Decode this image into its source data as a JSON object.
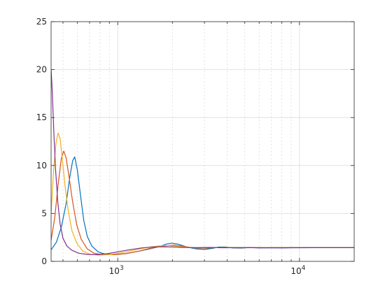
{
  "chart_data": {
    "type": "line",
    "title": "",
    "xlabel": "",
    "ylabel": "",
    "xscale": "log",
    "xlim": [
      430,
      20000
    ],
    "ylim": [
      0,
      25
    ],
    "grid": "on",
    "minor_grid_x": "on",
    "y_ticks": [
      0,
      5,
      10,
      15,
      20,
      25
    ],
    "x_major_ticks": [
      {
        "value": 1000,
        "base": "10",
        "exp": "3"
      },
      {
        "value": 10000,
        "base": "10",
        "exp": "4"
      }
    ],
    "x_minor_ticks": [
      500,
      600,
      700,
      800,
      900,
      2000,
      3000,
      4000,
      5000,
      6000,
      7000,
      8000,
      9000
    ],
    "series": [
      {
        "color": "#0072BD",
        "points": [
          [
            430,
            1.2
          ],
          [
            460,
            2.0
          ],
          [
            490,
            3.6
          ],
          [
            520,
            6.0
          ],
          [
            545,
            8.8
          ],
          [
            565,
            10.5
          ],
          [
            580,
            10.9
          ],
          [
            600,
            9.5
          ],
          [
            625,
            6.8
          ],
          [
            650,
            4.3
          ],
          [
            680,
            2.6
          ],
          [
            720,
            1.6
          ],
          [
            780,
            1.0
          ],
          [
            850,
            0.75
          ],
          [
            950,
            0.7
          ],
          [
            1100,
            0.8
          ],
          [
            1300,
            1.05
          ],
          [
            1500,
            1.3
          ],
          [
            1700,
            1.55
          ],
          [
            1850,
            1.8
          ],
          [
            1980,
            1.9
          ],
          [
            2150,
            1.8
          ],
          [
            2400,
            1.5
          ],
          [
            2700,
            1.3
          ],
          [
            3000,
            1.25
          ],
          [
            3300,
            1.35
          ],
          [
            3600,
            1.5
          ],
          [
            3900,
            1.5
          ],
          [
            4300,
            1.4
          ],
          [
            4800,
            1.38
          ],
          [
            5300,
            1.45
          ],
          [
            6000,
            1.4
          ],
          [
            7000,
            1.42
          ],
          [
            8000,
            1.4
          ],
          [
            9000,
            1.42
          ],
          [
            10000,
            1.42
          ],
          [
            12000,
            1.43
          ],
          [
            15000,
            1.43
          ],
          [
            20000,
            1.43
          ]
        ]
      },
      {
        "color": "#D95319",
        "points": [
          [
            430,
            2.2
          ],
          [
            450,
            4.5
          ],
          [
            470,
            8.0
          ],
          [
            490,
            10.8
          ],
          [
            505,
            11.5
          ],
          [
            520,
            10.8
          ],
          [
            540,
            8.8
          ],
          [
            565,
            6.2
          ],
          [
            595,
            3.8
          ],
          [
            630,
            2.3
          ],
          [
            680,
            1.3
          ],
          [
            740,
            0.85
          ],
          [
            820,
            0.7
          ],
          [
            950,
            0.7
          ],
          [
            1100,
            0.8
          ],
          [
            1300,
            1.05
          ],
          [
            1500,
            1.35
          ],
          [
            1700,
            1.55
          ],
          [
            1900,
            1.65
          ],
          [
            2050,
            1.7
          ],
          [
            2250,
            1.6
          ],
          [
            2500,
            1.45
          ],
          [
            2800,
            1.38
          ],
          [
            3100,
            1.38
          ],
          [
            3500,
            1.45
          ],
          [
            4000,
            1.45
          ],
          [
            4600,
            1.42
          ],
          [
            5300,
            1.43
          ],
          [
            6000,
            1.42
          ],
          [
            7000,
            1.43
          ],
          [
            8500,
            1.42
          ],
          [
            10000,
            1.43
          ],
          [
            13000,
            1.43
          ],
          [
            17000,
            1.43
          ],
          [
            20000,
            1.43
          ]
        ]
      },
      {
        "color": "#EDB120",
        "points": [
          [
            430,
            5.0
          ],
          [
            445,
            9.8
          ],
          [
            458,
            12.4
          ],
          [
            470,
            13.4
          ],
          [
            482,
            12.8
          ],
          [
            495,
            10.8
          ],
          [
            512,
            8.0
          ],
          [
            535,
            5.2
          ],
          [
            560,
            3.2
          ],
          [
            595,
            1.9
          ],
          [
            640,
            1.1
          ],
          [
            700,
            0.75
          ],
          [
            780,
            0.65
          ],
          [
            900,
            0.7
          ],
          [
            1050,
            0.9
          ],
          [
            1250,
            1.2
          ],
          [
            1450,
            1.45
          ],
          [
            1650,
            1.6
          ],
          [
            1850,
            1.65
          ],
          [
            2050,
            1.6
          ],
          [
            2300,
            1.5
          ],
          [
            2600,
            1.42
          ],
          [
            3000,
            1.42
          ],
          [
            3500,
            1.45
          ],
          [
            4100,
            1.43
          ],
          [
            4800,
            1.42
          ],
          [
            5600,
            1.43
          ],
          [
            6600,
            1.42
          ],
          [
            8000,
            1.43
          ],
          [
            10000,
            1.43
          ],
          [
            14000,
            1.43
          ],
          [
            20000,
            1.43
          ]
        ]
      },
      {
        "color": "#7E2F8E",
        "points": [
          [
            430,
            20.0
          ],
          [
            437,
            17.5
          ],
          [
            445,
            13.5
          ],
          [
            455,
            9.6
          ],
          [
            468,
            6.2
          ],
          [
            482,
            3.9
          ],
          [
            500,
            2.4
          ],
          [
            525,
            1.6
          ],
          [
            560,
            1.15
          ],
          [
            610,
            0.85
          ],
          [
            680,
            0.72
          ],
          [
            770,
            0.7
          ],
          [
            880,
            0.8
          ],
          [
            1000,
            1.0
          ],
          [
            1150,
            1.2
          ],
          [
            1350,
            1.4
          ],
          [
            1550,
            1.5
          ],
          [
            1750,
            1.52
          ],
          [
            2000,
            1.5
          ],
          [
            2300,
            1.45
          ],
          [
            2700,
            1.43
          ],
          [
            3200,
            1.45
          ],
          [
            3800,
            1.42
          ],
          [
            4500,
            1.43
          ],
          [
            5500,
            1.43
          ],
          [
            7000,
            1.42
          ],
          [
            9000,
            1.43
          ],
          [
            12000,
            1.43
          ],
          [
            16000,
            1.43
          ],
          [
            20000,
            1.43
          ]
        ]
      }
    ]
  }
}
